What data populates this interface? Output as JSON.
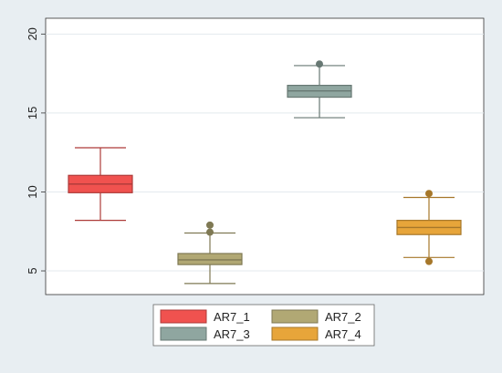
{
  "chart_data": {
    "type": "box",
    "title": "",
    "xlabel": "",
    "ylabel": "",
    "ylim": [
      3.5,
      21
    ],
    "yticks": [
      5,
      10,
      15,
      20
    ],
    "ytick_labels": [
      "5",
      "10",
      "15",
      "20"
    ],
    "grid": true,
    "legend_position": "bottom",
    "series": [
      {
        "name": "AR7_1",
        "color": "#f0524f",
        "whisker_low": 8.2,
        "q1": 9.95,
        "median": 10.5,
        "q3": 11.05,
        "whisker_high": 12.8,
        "outliers": []
      },
      {
        "name": "AR7_2",
        "color": "#b1a874",
        "whisker_low": 4.2,
        "q1": 5.4,
        "median": 5.7,
        "q3": 6.1,
        "whisker_high": 7.4,
        "outliers": [
          7.45,
          7.9
        ]
      },
      {
        "name": "AR7_3",
        "color": "#8fa6a0",
        "whisker_low": 14.7,
        "q1": 16.0,
        "median": 16.4,
        "q3": 16.75,
        "whisker_high": 18.0,
        "outliers": [
          18.1
        ]
      },
      {
        "name": "AR7_4",
        "color": "#e7a53a",
        "whisker_low": 5.85,
        "q1": 7.3,
        "median": 7.75,
        "q3": 8.2,
        "whisker_high": 9.65,
        "outliers": [
          9.9,
          5.6
        ]
      }
    ]
  }
}
